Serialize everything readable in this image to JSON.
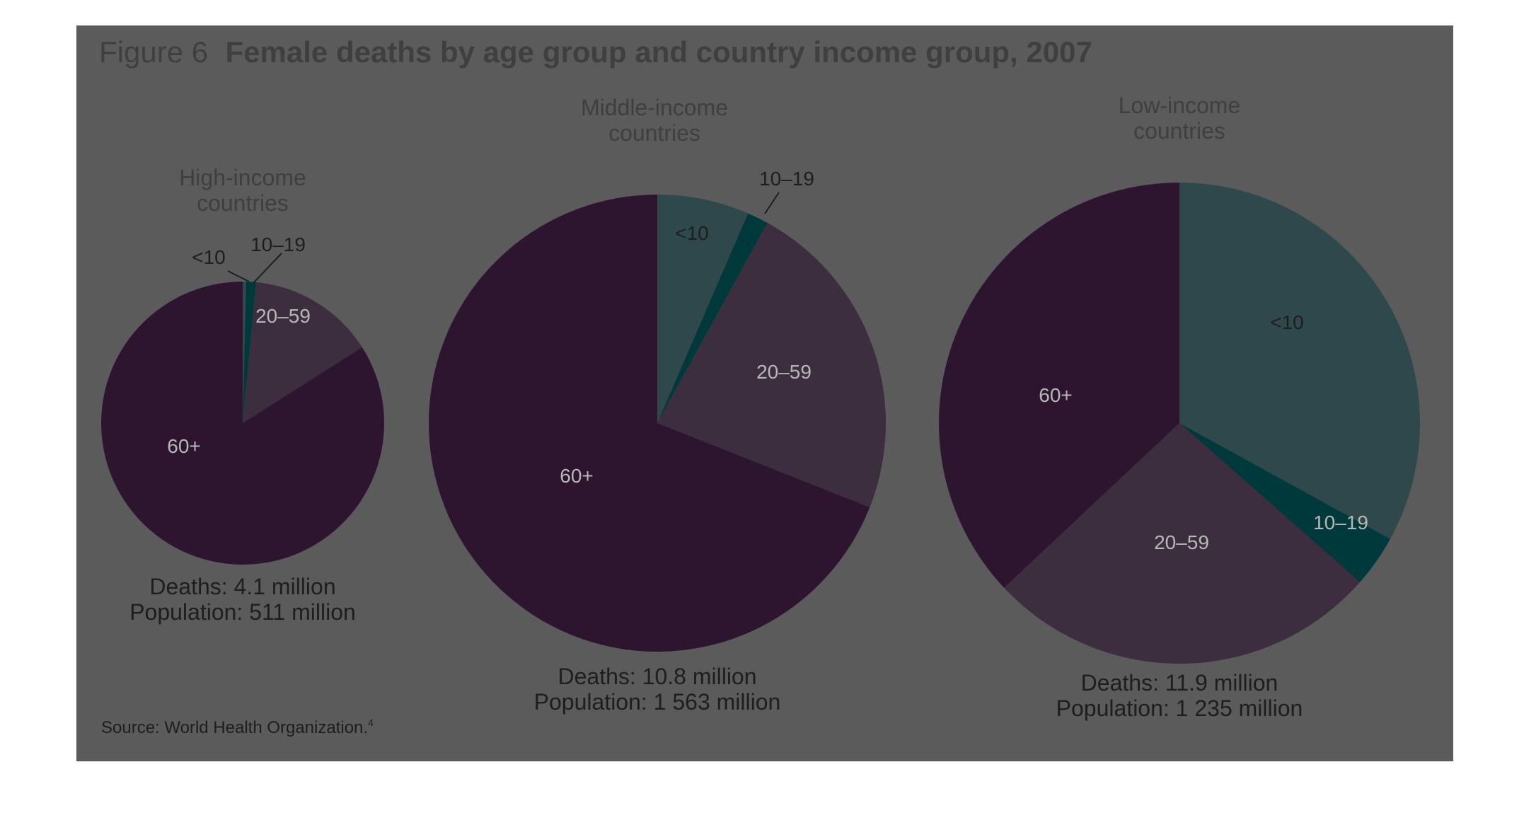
{
  "figure": {
    "prefix": "Figure 6",
    "title": "Female deaths by age group and country income group, 2007",
    "source": "Source: World Health Organization.",
    "source_ref": "4"
  },
  "colors": {
    "panel": "#5b5b5b",
    "<10": "#2f484c",
    "10–19": "#00393c",
    "20–59": "#3c2d3f",
    "60+": "#2d1530"
  },
  "chart_data": [
    {
      "type": "pie",
      "title": "High-income\ncountries",
      "deaths_label": "Deaths: 4.1 million",
      "population_label": "Population: 511 million",
      "deaths_million": 4.1,
      "population_million": 511,
      "slices": [
        {
          "label": "<10",
          "value": 0.4
        },
        {
          "label": "10–19",
          "value": 1.1
        },
        {
          "label": "20–59",
          "value": 14.5
        },
        {
          "label": "60+",
          "value": 84
        }
      ]
    },
    {
      "type": "pie",
      "title": "Middle-income\ncountries",
      "deaths_label": "Deaths: 10.8 million",
      "population_label": "Population: 1 563 million",
      "deaths_million": 10.8,
      "population_million": 1563,
      "slices": [
        {
          "label": "<10",
          "value": 6.5
        },
        {
          "label": "10–19",
          "value": 1.5
        },
        {
          "label": "20–59",
          "value": 23
        },
        {
          "label": "60+",
          "value": 69
        }
      ]
    },
    {
      "type": "pie",
      "title": "Low-income\ncountries",
      "deaths_label": "Deaths: 11.9 million",
      "population_label": "Population: 1 235 million",
      "deaths_million": 11.9,
      "population_million": 1235,
      "slices": [
        {
          "label": "<10",
          "value": 33
        },
        {
          "label": "10–19",
          "value": 3.5
        },
        {
          "label": "20–59",
          "value": 26.5
        },
        {
          "label": "60+",
          "value": 37
        }
      ]
    }
  ]
}
